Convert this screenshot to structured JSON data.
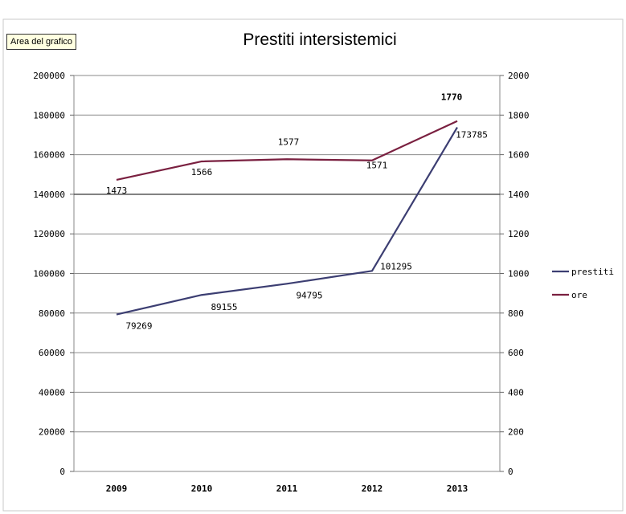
{
  "tooltip": "Area del grafico",
  "chart_data": {
    "type": "line",
    "title": "Prestiti intersistemici",
    "categories": [
      "2009",
      "2010",
      "2011",
      "2012",
      "2013"
    ],
    "y_left": {
      "min": 0,
      "max": 200000,
      "step": 20000,
      "ticks": [
        "0",
        "20000",
        "40000",
        "60000",
        "80000",
        "100000",
        "120000",
        "140000",
        "160000",
        "180000",
        "200000"
      ]
    },
    "y_right": {
      "min": 0,
      "max": 2000,
      "step": 200,
      "ticks": [
        "0",
        "200",
        "400",
        "600",
        "800",
        "1000",
        "1200",
        "1400",
        "1600",
        "1800",
        "2000"
      ]
    },
    "grid": true,
    "legend_position": "right",
    "series": [
      {
        "name": "prestiti",
        "axis": "left",
        "color": "#3c3e72",
        "values": [
          79269,
          89155,
          94795,
          101295,
          173785
        ],
        "labels": [
          "79269",
          "89155",
          "94795",
          "101295",
          "173785"
        ]
      },
      {
        "name": "ore",
        "axis": "right",
        "color": "#7a2040",
        "values": [
          1473,
          1566,
          1577,
          1571,
          1770
        ],
        "labels": [
          "1473",
          "1566",
          "1577",
          "1571",
          "1770"
        ]
      }
    ]
  }
}
